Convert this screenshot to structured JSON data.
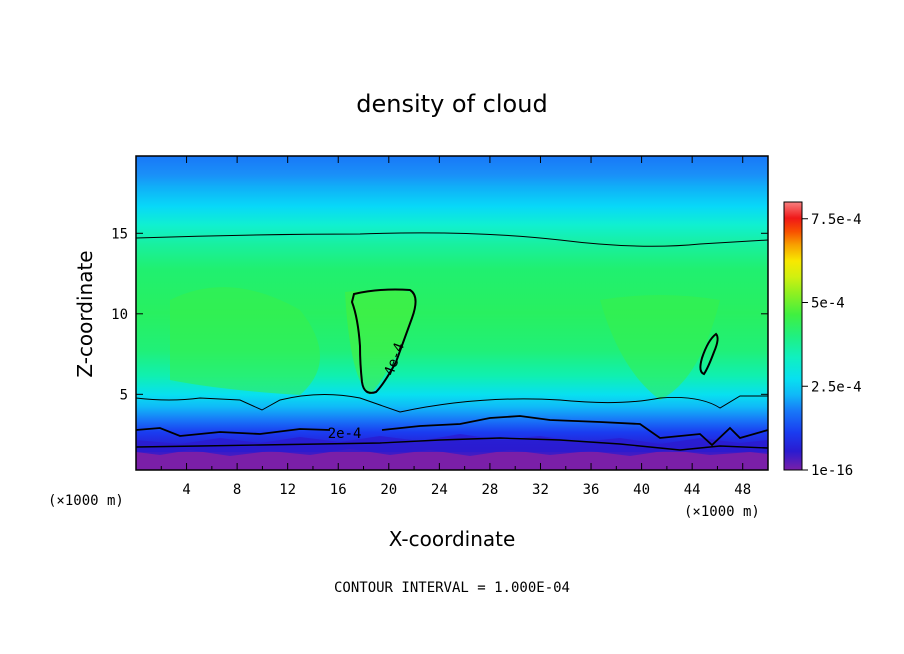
{
  "chart_data": {
    "type": "heatmap",
    "title": "density of cloud",
    "xlabel": "X-coordinate",
    "ylabel": "Z-coordinate",
    "x_unit": "(×1000 m)",
    "z_unit": "(×1000 m)",
    "xlim": [
      0,
      50
    ],
    "ylim": [
      0.3,
      19.8
    ],
    "x_ticks": [
      4,
      8,
      12,
      16,
      20,
      24,
      28,
      32,
      36,
      40,
      44,
      48
    ],
    "y_ticks": [
      5,
      10,
      15
    ],
    "colorbar": {
      "range": [
        1e-16,
        0.0008
      ],
      "tick_labels": [
        "1e-16",
        "2.5e-4",
        "5e-4",
        "7.5e-4"
      ],
      "tick_values": [
        1e-16,
        0.00025,
        0.0005,
        0.00075
      ]
    },
    "contour_labels": [
      {
        "text": "2e-4",
        "x": 16.5,
        "z": 2.6
      },
      {
        "text": "4e-4",
        "x": 20.4,
        "z": 7.2
      }
    ],
    "contour_interval_note": "CONTOUR INTERVAL = 1.000E-04"
  },
  "colors": {
    "palette": [
      "#7a1fa8",
      "#2a1bd0",
      "#1a3cf0",
      "#1878f8",
      "#10b8f8",
      "#08e0f0",
      "#10f0c0",
      "#20f080",
      "#30f050",
      "#50f030",
      "#90f020",
      "#d0f010",
      "#f8e800",
      "#f8a000",
      "#f85000",
      "#f01818",
      "#f88080"
    ]
  }
}
